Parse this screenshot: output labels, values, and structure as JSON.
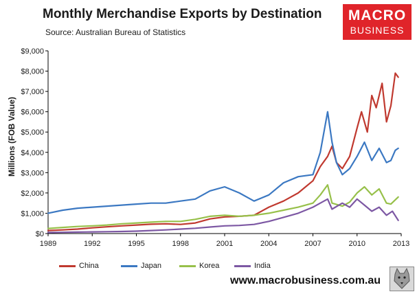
{
  "header": {
    "title": "Monthly Merchandise Exports by Destination",
    "source": "Source:  Australian Bureau of Statistics"
  },
  "logo": {
    "line1": "MACRO",
    "line2": "BUSINESS"
  },
  "footer": {
    "website": "www.macrobusiness.com.au"
  },
  "colors": {
    "China": "#c0392f",
    "Japan": "#3b78c2",
    "Korea": "#97c04a",
    "India": "#7c57a3"
  },
  "chart_data": {
    "type": "line",
    "title": "Monthly Merchandise Exports by Destination",
    "subtitle": "Source:  Australian Bureau of Statistics",
    "xlabel": "",
    "ylabel": "Millions (FOB Value)",
    "xlim": [
      1989,
      2013
    ],
    "ylim": [
      0,
      9000
    ],
    "x_ticks": [
      1989,
      1992,
      1995,
      1998,
      2001,
      2004,
      2007,
      2010,
      2013
    ],
    "y_ticks": [
      "$0",
      "$1,000",
      "$2,000",
      "$3,000",
      "$4,000",
      "$5,000",
      "$6,000",
      "$7,000",
      "$8,000",
      "$9,000"
    ],
    "y_tick_values": [
      0,
      1000,
      2000,
      3000,
      4000,
      5000,
      6000,
      7000,
      8000,
      9000
    ],
    "grid": false,
    "legend": "bottom",
    "series": [
      {
        "name": "China",
        "x": [
          1989,
          1990,
          1991,
          1992,
          1993,
          1994,
          1995,
          1996,
          1997,
          1998,
          1999,
          2000,
          2001,
          2002,
          2003,
          2004,
          2005,
          2006,
          2006.5,
          2007,
          2007.5,
          2008,
          2008.3,
          2008.6,
          2009,
          2009.5,
          2010,
          2010.3,
          2010.7,
          2011,
          2011.3,
          2011.7,
          2012,
          2012.3,
          2012.6,
          2012.8
        ],
        "values": [
          150,
          180,
          220,
          280,
          330,
          380,
          420,
          460,
          480,
          450,
          520,
          720,
          820,
          850,
          900,
          1300,
          1600,
          2000,
          2300,
          2600,
          3300,
          3800,
          4300,
          3500,
          3200,
          3800,
          5200,
          6000,
          5000,
          6800,
          6200,
          7400,
          5500,
          6300,
          7900,
          7700
        ]
      },
      {
        "name": "Japan",
        "x": [
          1989,
          1990,
          1991,
          1992,
          1993,
          1994,
          1995,
          1996,
          1997,
          1998,
          1999,
          2000,
          2001,
          2002,
          2003,
          2004,
          2005,
          2006,
          2007,
          2007.5,
          2008,
          2008.3,
          2008.6,
          2009,
          2009.5,
          2010,
          2010.5,
          2011,
          2011.5,
          2012,
          2012.3,
          2012.6,
          2012.8
        ],
        "values": [
          1000,
          1150,
          1250,
          1300,
          1350,
          1400,
          1450,
          1500,
          1500,
          1600,
          1700,
          2100,
          2300,
          2000,
          1600,
          1900,
          2500,
          2800,
          2900,
          4000,
          6000,
          4500,
          3500,
          2900,
          3200,
          3800,
          4500,
          3600,
          4200,
          3500,
          3600,
          4100,
          4200
        ]
      },
      {
        "name": "Korea",
        "x": [
          1989,
          1990,
          1991,
          1992,
          1993,
          1994,
          1995,
          1996,
          1997,
          1998,
          1999,
          2000,
          2001,
          2002,
          2003,
          2004,
          2005,
          2006,
          2007,
          2007.5,
          2008,
          2008.3,
          2009,
          2009.5,
          2010,
          2010.5,
          2011,
          2011.5,
          2012,
          2012.3,
          2012.8
        ],
        "values": [
          250,
          300,
          350,
          380,
          420,
          480,
          520,
          560,
          600,
          600,
          700,
          850,
          900,
          850,
          900,
          1000,
          1150,
          1300,
          1500,
          1900,
          2400,
          1500,
          1350,
          1550,
          2000,
          2300,
          1900,
          2200,
          1500,
          1450,
          1800
        ]
      },
      {
        "name": "India",
        "x": [
          1989,
          1990,
          1991,
          1992,
          1993,
          1994,
          1995,
          1996,
          1997,
          1998,
          1999,
          2000,
          2001,
          2002,
          2003,
          2004,
          2005,
          2006,
          2007,
          2007.5,
          2008,
          2008.3,
          2009,
          2009.5,
          2010,
          2010.5,
          2011,
          2011.5,
          2012,
          2012.4,
          2012.8
        ],
        "values": [
          50,
          60,
          70,
          80,
          90,
          100,
          120,
          150,
          180,
          220,
          260,
          320,
          380,
          400,
          450,
          600,
          800,
          1000,
          1300,
          1500,
          1700,
          1200,
          1500,
          1300,
          1700,
          1400,
          1100,
          1300,
          900,
          1100,
          650
        ]
      }
    ]
  }
}
